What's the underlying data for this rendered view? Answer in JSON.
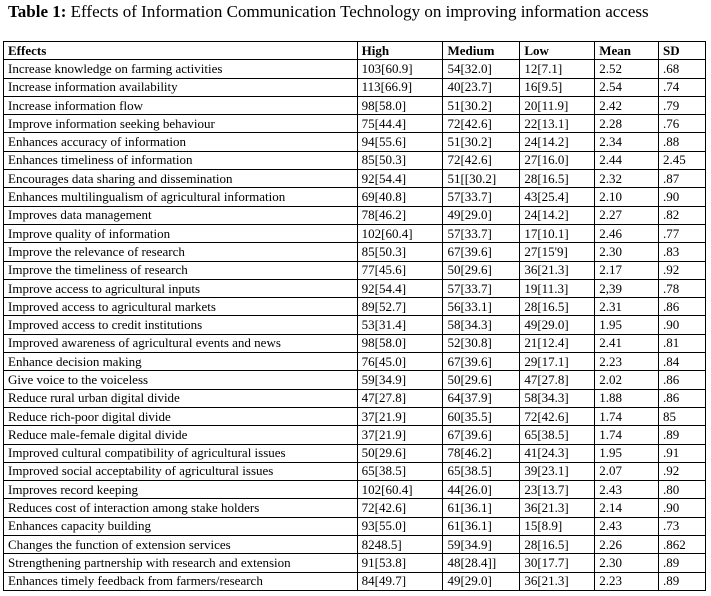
{
  "title": {
    "label": "Table 1:",
    "text": "Effects of Information Communication Technology on improving information access"
  },
  "table": {
    "header": [
      "Effects",
      "High",
      "Medium",
      "Low",
      "Mean",
      "SD"
    ],
    "rows": [
      [
        "Increase knowledge on farming activities",
        "103[60.9]",
        "54[32.0]",
        "12[7.1]",
        "2.52",
        ".68"
      ],
      [
        "Increase information availability",
        "113[66.9]",
        "40[23.7]",
        "16[9.5]",
        "2.54",
        ".74"
      ],
      [
        "Increase information flow",
        "98[58.0]",
        "51[30.2]",
        "20[11.9]",
        "2.42",
        ".79"
      ],
      [
        "Improve information seeking behaviour",
        "75[44.4]",
        "72[42.6]",
        "22[13.1]",
        "2.28",
        ".76"
      ],
      [
        "Enhances accuracy of information",
        "94[55.6]",
        "51[30.2]",
        "24[14.2]",
        "2.34",
        ".88"
      ],
      [
        "Enhances timeliness of information",
        "85[50.3]",
        "72[42.6]",
        "27[16.0]",
        "2.44",
        "2.45"
      ],
      [
        "Encourages data sharing and dissemination",
        "92[54.4]",
        "51[[30.2]",
        "28[16.5]",
        "2.32",
        ".87"
      ],
      [
        "Enhances multilingualism of agricultural information",
        "69[40.8]",
        "57[33.7]",
        "43[25.4]",
        "2.10",
        ".90"
      ],
      [
        "Improves data management",
        "78[46.2]",
        "49[29.0]",
        "24[14.2]",
        "2.27",
        ".82"
      ],
      [
        "Improve quality of information",
        "102[60.4]",
        "57[33.7]",
        "17[10.1]",
        "2.46",
        ".77"
      ],
      [
        "Improve the relevance of research",
        "85[50.3]",
        "67[39.6]",
        "27[15'9]",
        "2.30",
        ".83"
      ],
      [
        "Improve the timeliness of research",
        "77[45.6]",
        "50[29.6]",
        "36[21.3]",
        "2.17",
        ".92"
      ],
      [
        "Improve access to agricultural inputs",
        "92[54.4]",
        "57[33.7]",
        "19[11.3]",
        "2,39",
        ".78"
      ],
      [
        "Improved access to agricultural markets",
        "89[52.7]",
        "56[33.1]",
        "28[16.5]",
        "2.31",
        ".86"
      ],
      [
        "Improved access to credit institutions",
        "53[31.4]",
        "58[34.3]",
        "49[29.0]",
        "1.95",
        ".90"
      ],
      [
        "Improved awareness of agricultural events and news",
        "98[58.0]",
        "52[30.8]",
        "21[12.4]",
        "2.41",
        ".81"
      ],
      [
        "Enhance decision making",
        "76[45.0]",
        "67[39.6]",
        "29[17.1]",
        "2.23",
        ".84"
      ],
      [
        "Give voice to the voiceless",
        "59[34.9]",
        "50[29.6]",
        "47[27.8]",
        "2.02",
        ".86"
      ],
      [
        "Reduce rural urban digital divide",
        "47[27.8]",
        "64[37.9]",
        "58[34.3]",
        "1.88",
        ".86"
      ],
      [
        "Reduce rich-poor digital divide",
        "37[21.9]",
        "60[35.5]",
        "72[42.6]",
        "1.74",
        "85"
      ],
      [
        "Reduce male-female digital divide",
        "37[21.9]",
        "67[39.6]",
        "65[38.5]",
        "1.74",
        ".89"
      ],
      [
        "Improved cultural compatibility of agricultural issues",
        "50[29.6]",
        "78[46.2]",
        "41[24.3]",
        "1.95",
        ".91"
      ],
      [
        "Improved social acceptability of agricultural issues",
        "65[38.5]",
        "65[38.5]",
        "39[23.1]",
        "2.07",
        ".92"
      ],
      [
        "Improves record keeping",
        "102[60.4]",
        "44[26.0]",
        "23[13.7]",
        "2.43",
        ".80"
      ],
      [
        "Reduces cost of interaction among stake holders",
        "72[42.6]",
        "61[36.1]",
        "36[21.3]",
        "2.14",
        ".90"
      ],
      [
        "Enhances capacity building",
        "93[55.0]",
        "61[36.1]",
        "15[8.9]",
        "2.43",
        ".73"
      ],
      [
        "Changes the function of extension services",
        "8248.5]",
        "59[34.9]",
        "28[16.5]",
        "2.26",
        ".862"
      ],
      [
        "Strengthening partnership with research and extension",
        "91[53.8]",
        "48[28.4]]",
        "30[17.7]",
        "2.30",
        ".89"
      ],
      [
        "Enhances timely feedback from farmers/research",
        "84[49.7]",
        "49[29.0]",
        "36[21.3]",
        "2.23",
        ".89"
      ]
    ]
  }
}
